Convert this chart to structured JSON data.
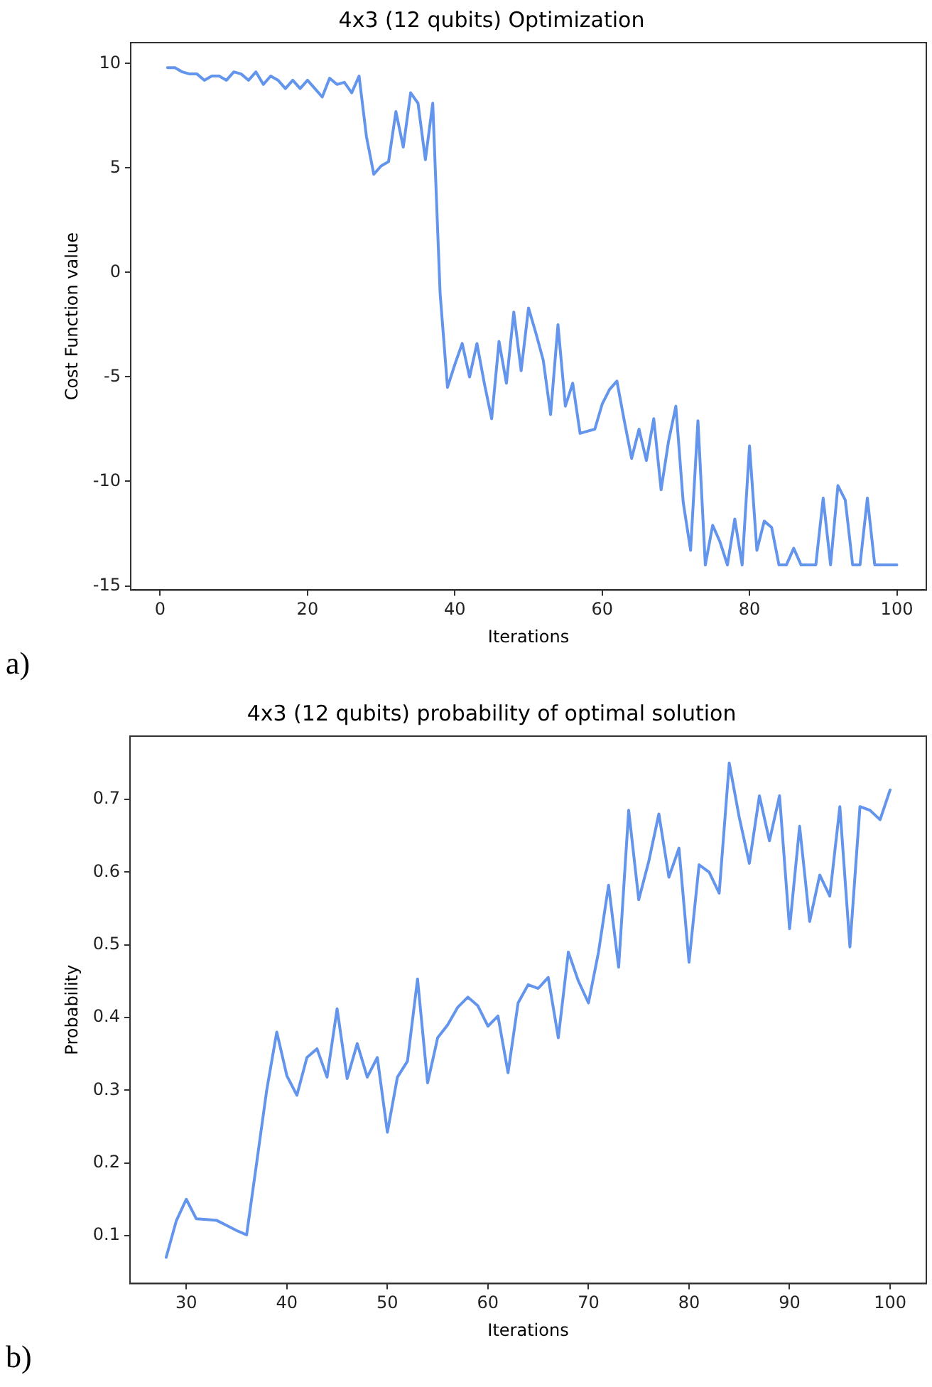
{
  "chart_data": [
    {
      "type": "line",
      "title": "4x3 (12 qubits) Optimization",
      "xlabel": "Iterations",
      "ylabel": "Cost Function value",
      "annotations": [
        "a)"
      ],
      "x": [
        1,
        2,
        3,
        4,
        5,
        6,
        7,
        8,
        9,
        10,
        11,
        12,
        13,
        14,
        15,
        16,
        17,
        18,
        19,
        20,
        21,
        22,
        23,
        24,
        25,
        26,
        27,
        28,
        29,
        30,
        31,
        32,
        33,
        34,
        35,
        36,
        37,
        38,
        39,
        40,
        41,
        42,
        43,
        44,
        45,
        46,
        47,
        48,
        49,
        50,
        51,
        52,
        53,
        54,
        55,
        56,
        57,
        58,
        59,
        60,
        61,
        62,
        63,
        64,
        65,
        66,
        67,
        68,
        69,
        70,
        71,
        72,
        73,
        74,
        75,
        76,
        77,
        78,
        79,
        80,
        81,
        82,
        83,
        84,
        85,
        86,
        87,
        88,
        89,
        90,
        91,
        92,
        93,
        94,
        95,
        96,
        97,
        98,
        99,
        100
      ],
      "series": [
        {
          "color": "#6495ed",
          "values": [
            9.8,
            9.8,
            9.6,
            9.5,
            9.5,
            9.2,
            9.4,
            9.4,
            9.2,
            9.6,
            9.5,
            9.2,
            9.6,
            9.0,
            9.4,
            9.2,
            8.8,
            9.2,
            8.8,
            9.2,
            8.8,
            8.4,
            9.3,
            9.0,
            9.1,
            8.6,
            9.4,
            6.5,
            4.7,
            5.1,
            5.3,
            7.7,
            6.0,
            8.6,
            8.1,
            5.4,
            8.1,
            -1.0,
            -5.5,
            -4.4,
            -3.4,
            -5.0,
            -3.4,
            -5.3,
            -7.0,
            -3.3,
            -5.3,
            -1.9,
            -4.7,
            -1.7,
            -2.9,
            -4.2,
            -6.8,
            -2.5,
            -6.4,
            -5.3,
            -7.7,
            -7.6,
            -7.5,
            -6.3,
            -5.6,
            -5.2,
            -7.1,
            -8.9,
            -7.5,
            -9.0,
            -7.0,
            -10.4,
            -8.1,
            -6.4,
            -11.0,
            -13.3,
            -7.1,
            -14.0,
            -12.1,
            -12.9,
            -14.0,
            -11.8,
            -14.0,
            -8.3,
            -13.3,
            -11.9,
            -12.2,
            -14.0,
            -14.0,
            -13.2,
            -14.0,
            -14.0,
            -14.0,
            -10.8,
            -14.0,
            -10.2,
            -10.9,
            -14.0,
            -14.0,
            -10.8,
            -14.0,
            -14.0,
            -14.0,
            -14.0
          ]
        }
      ],
      "xlim": [
        -4,
        104
      ],
      "ylim": [
        -15.2,
        11
      ],
      "xticks": [
        0,
        20,
        40,
        60,
        80,
        100
      ],
      "yticks": [
        -15,
        -10,
        -5,
        0,
        5,
        10
      ],
      "grid": false,
      "legend": false,
      "marker": "none",
      "line_style": "solid"
    },
    {
      "type": "line",
      "title": "4x3 (12 qubits) probability of optimal solution",
      "xlabel": "Iterations",
      "ylabel": "Probability",
      "annotations": [
        "b)"
      ],
      "x": [
        28,
        29,
        30,
        31,
        32,
        33,
        34,
        35,
        36,
        37,
        38,
        39,
        40,
        41,
        42,
        43,
        44,
        45,
        46,
        47,
        48,
        49,
        50,
        51,
        52,
        53,
        54,
        55,
        56,
        57,
        58,
        59,
        60,
        61,
        62,
        63,
        64,
        65,
        66,
        67,
        68,
        69,
        70,
        71,
        72,
        73,
        74,
        75,
        76,
        77,
        78,
        79,
        80,
        81,
        82,
        83,
        84,
        85,
        86,
        87,
        88,
        89,
        90,
        91,
        92,
        93,
        94,
        95,
        96,
        97,
        98,
        99,
        100
      ],
      "series": [
        {
          "color": "#6495ed",
          "values": [
            0.07,
            0.12,
            0.15,
            0.123,
            0.122,
            0.121,
            0.114,
            0.107,
            0.101,
            0.2,
            0.3,
            0.38,
            0.32,
            0.293,
            0.345,
            0.357,
            0.318,
            0.412,
            0.316,
            0.364,
            0.318,
            0.345,
            0.242,
            0.318,
            0.34,
            0.453,
            0.31,
            0.372,
            0.39,
            0.414,
            0.428,
            0.416,
            0.388,
            0.402,
            0.324,
            0.42,
            0.445,
            0.44,
            0.455,
            0.372,
            0.49,
            0.45,
            0.42,
            0.49,
            0.582,
            0.469,
            0.685,
            0.562,
            0.615,
            0.68,
            0.593,
            0.633,
            0.476,
            0.61,
            0.6,
            0.571,
            0.75,
            0.675,
            0.612,
            0.705,
            0.643,
            0.705,
            0.522,
            0.663,
            0.532,
            0.596,
            0.567,
            0.69,
            0.497,
            0.69,
            0.685,
            0.672,
            0.713
          ]
        }
      ],
      "xlim": [
        24.4,
        103.6
      ],
      "ylim": [
        0.034,
        0.787
      ],
      "xticks": [
        30,
        40,
        50,
        60,
        70,
        80,
        90,
        100
      ],
      "yticks": [
        0.1,
        0.2,
        0.3,
        0.4,
        0.5,
        0.6,
        0.7
      ],
      "grid": false,
      "legend": false,
      "marker": "none",
      "line_style": "solid"
    }
  ]
}
